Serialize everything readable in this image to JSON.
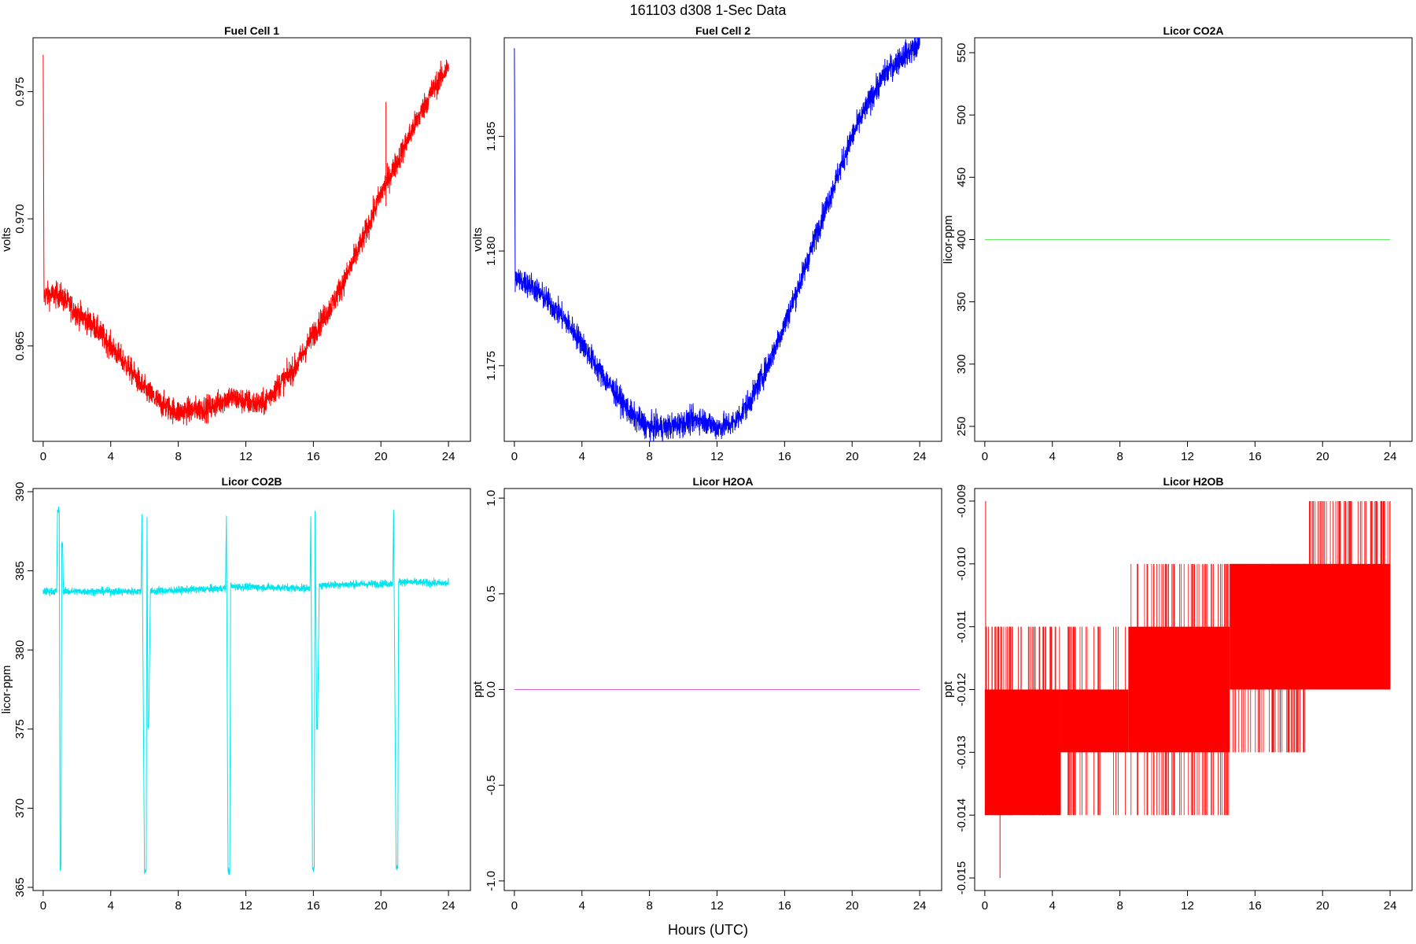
{
  "figure": {
    "suptitle": "161103   d308   1-Sec Data",
    "xlabel": "Hours (UTC)"
  },
  "chart_data": [
    {
      "type": "line",
      "title": "Fuel Cell 1",
      "ylabel": "volts",
      "color": "#ff0000",
      "xlim": [
        -0.6,
        25.3
      ],
      "ylim": [
        0.96125,
        0.97712
      ],
      "xticks": [
        0,
        4,
        8,
        12,
        16,
        20,
        24
      ],
      "yticks": [
        0.965,
        0.97,
        0.975
      ],
      "ytick_labels": [
        "0.965",
        "0.970",
        "0.975"
      ],
      "noise": 0.00025,
      "x": [
        0,
        0.05,
        1,
        2,
        3,
        4,
        5,
        6,
        7,
        8,
        9,
        10,
        11,
        12,
        13,
        14,
        15,
        16,
        17,
        18,
        19,
        20,
        21,
        22,
        23,
        24
      ],
      "y": [
        0.9762,
        0.967,
        0.967,
        0.9663,
        0.9658,
        0.965,
        0.9642,
        0.9633,
        0.9627,
        0.9624,
        0.9625,
        0.9626,
        0.963,
        0.9628,
        0.9627,
        0.9635,
        0.9642,
        0.9655,
        0.9665,
        0.9678,
        0.9693,
        0.971,
        0.9723,
        0.9737,
        0.975,
        0.976
      ]
    },
    {
      "type": "line",
      "title": "Fuel Cell 2",
      "ylabel": "volts",
      "color": "#0000ff",
      "xlim": [
        -0.6,
        25.3
      ],
      "ylim": [
        1.1717,
        1.1893
      ],
      "xticks": [
        0,
        4,
        8,
        12,
        16,
        20,
        24
      ],
      "yticks": [
        1.175,
        1.18,
        1.185
      ],
      "ytick_labels": [
        "1.175",
        "1.180",
        "1.185"
      ],
      "noise": 0.00028,
      "x": [
        0,
        0.05,
        1,
        2,
        3,
        4,
        5,
        6,
        7,
        8,
        9,
        10,
        11,
        12,
        13,
        14,
        15,
        16,
        17,
        18,
        19,
        20,
        21,
        22,
        23,
        24
      ],
      "y": [
        1.1887,
        1.1788,
        1.1785,
        1.1778,
        1.177,
        1.176,
        1.1748,
        1.1738,
        1.1728,
        1.1723,
        1.1723,
        1.1725,
        1.1727,
        1.1723,
        1.1725,
        1.1735,
        1.175,
        1.1768,
        1.1788,
        1.181,
        1.183,
        1.185,
        1.1865,
        1.1878,
        1.1885,
        1.189
      ]
    },
    {
      "type": "line",
      "title": "Licor CO2A",
      "ylabel": "licor-ppm",
      "color": "#66ee66",
      "xlim": [
        -0.6,
        25.3
      ],
      "ylim": [
        238,
        562
      ],
      "xticks": [
        0,
        4,
        8,
        12,
        16,
        20,
        24
      ],
      "yticks": [
        250,
        300,
        350,
        400,
        450,
        500,
        550
      ],
      "ytick_labels": [
        "250",
        "300",
        "350",
        "400",
        "450",
        "500",
        "550"
      ],
      "noise": 0,
      "x": [
        0,
        24
      ],
      "y": [
        400,
        400
      ]
    },
    {
      "type": "line",
      "title": "Licor CO2B",
      "ylabel": "licor-ppm",
      "color": "#00e5ee",
      "xlim": [
        -0.6,
        25.3
      ],
      "ylim": [
        364.8,
        390.2
      ],
      "xticks": [
        0,
        4,
        8,
        12,
        16,
        20,
        24
      ],
      "yticks": [
        365,
        370,
        375,
        380,
        385,
        390
      ],
      "ytick_labels": [
        "365",
        "370",
        "375",
        "380",
        "385",
        "390"
      ],
      "noise": 0.12,
      "x": [
        0,
        0.8,
        0.85,
        0.95,
        1.0,
        1.05,
        1.1,
        1.15,
        1.2,
        1.3,
        5.8,
        5.85,
        6.0,
        6.1,
        6.15,
        6.2,
        6.25,
        6.35,
        10.8,
        10.85,
        10.95,
        11.05,
        11.1,
        11.15,
        11.2,
        11.3,
        15.8,
        15.85,
        15.95,
        16.05,
        16.1,
        16.2,
        16.25,
        16.35,
        20.7,
        20.75,
        20.9,
        21.0,
        21.05,
        21.1,
        21.15,
        21.25,
        24
      ],
      "y": [
        383.7,
        383.7,
        388.8,
        388.8,
        366.2,
        366.2,
        386.7,
        386.7,
        383.7,
        383.7,
        383.7,
        388.7,
        366.0,
        366.0,
        388.7,
        375.2,
        375.2,
        383.7,
        383.9,
        388.6,
        366.0,
        366.0,
        384.0,
        384.0,
        384.0,
        384.0,
        383.9,
        388.7,
        366.1,
        366.1,
        388.7,
        375.2,
        375.2,
        384.1,
        384.2,
        389.0,
        366.3,
        366.3,
        384.3,
        384.3,
        384.3,
        384.3,
        384.2
      ]
    },
    {
      "type": "line",
      "title": "Licor H2OA",
      "ylabel": "ppt",
      "color": "#dd66dd",
      "xlim": [
        -0.6,
        25.3
      ],
      "ylim": [
        -1.05,
        1.05
      ],
      "xticks": [
        0,
        4,
        8,
        12,
        16,
        20,
        24
      ],
      "yticks": [
        -1.0,
        -0.5,
        0.0,
        0.5,
        1.0
      ],
      "ytick_labels": [
        "-1.0",
        "-0.5",
        "0.0",
        "0.5",
        "1.0"
      ],
      "noise": 0,
      "x": [
        0,
        24
      ],
      "y": [
        0,
        0
      ]
    },
    {
      "type": "line",
      "title": "Licor H2OB",
      "ylabel": "ppt",
      "color": "#ff0000",
      "xlim": [
        -0.6,
        25.3
      ],
      "ylim": [
        -0.0152,
        -0.0088
      ],
      "xticks": [
        0,
        4,
        8,
        12,
        16,
        20,
        24
      ],
      "yticks": [
        -0.015,
        -0.014,
        -0.013,
        -0.012,
        -0.011,
        -0.01,
        -0.009
      ],
      "ytick_labels": [
        "-0.015",
        "-0.014",
        "-0.013",
        "-0.012",
        "-0.011",
        "-0.010",
        "-0.009"
      ],
      "quantized_bands": [
        {
          "x0": 0,
          "x1": 4.5,
          "low": -0.014,
          "high": -0.012
        },
        {
          "x0": 4.5,
          "x1": 8.5,
          "low": -0.013,
          "high": -0.012
        },
        {
          "x0": 8.5,
          "x1": 14.5,
          "low": -0.013,
          "high": -0.011
        },
        {
          "x0": 14.5,
          "x1": 18.0,
          "low": -0.012,
          "high": -0.01
        },
        {
          "x0": 18.0,
          "x1": 24,
          "low": -0.012,
          "high": -0.01
        }
      ],
      "spikes": [
        {
          "x": 0.05,
          "low": -0.014,
          "high": -0.009
        },
        {
          "x": 0.9,
          "low": -0.015,
          "high": -0.012
        },
        {
          "x": 12.4,
          "low": -0.012,
          "high": -0.01
        },
        {
          "x": 21.0,
          "low": -0.011,
          "high": -0.009
        },
        {
          "x": 22.5,
          "low": -0.011,
          "high": -0.009
        },
        {
          "x": 23.5,
          "low": -0.011,
          "high": -0.009
        }
      ]
    }
  ]
}
